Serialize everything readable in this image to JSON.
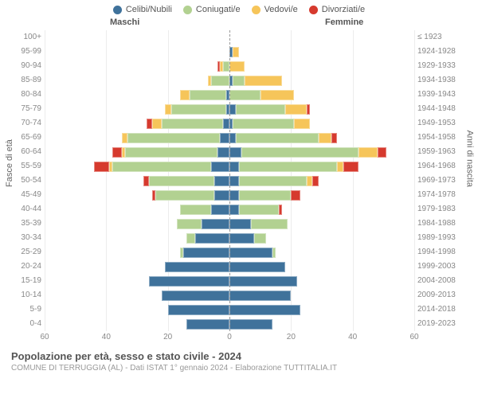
{
  "legend": [
    {
      "label": "Celibi/Nubili",
      "color": "#3f729b"
    },
    {
      "label": "Coniugati/e",
      "color": "#b2d191"
    },
    {
      "label": "Vedovi/e",
      "color": "#f6c55a"
    },
    {
      "label": "Divorziati/e",
      "color": "#d63a2e"
    }
  ],
  "gender": {
    "male": "Maschi",
    "female": "Femmine"
  },
  "y_left_title": "Fasce di età",
  "y_right_title": "Anni di nascita",
  "x": {
    "min": -60,
    "max": 60,
    "ticks": [
      60,
      40,
      20,
      0,
      20,
      40,
      60
    ]
  },
  "age_labels": [
    "100+",
    "95-99",
    "90-94",
    "85-89",
    "80-84",
    "75-79",
    "70-74",
    "65-69",
    "60-64",
    "55-59",
    "50-54",
    "45-49",
    "40-44",
    "35-39",
    "30-34",
    "25-29",
    "20-24",
    "15-19",
    "10-14",
    "5-9",
    "0-4"
  ],
  "birth_labels": [
    "≤ 1923",
    "1924-1928",
    "1929-1933",
    "1934-1938",
    "1939-1943",
    "1944-1948",
    "1949-1953",
    "1954-1958",
    "1959-1963",
    "1964-1968",
    "1969-1973",
    "1974-1978",
    "1979-1983",
    "1984-1988",
    "1989-1993",
    "1994-1998",
    "1999-2003",
    "2004-2008",
    "2009-2013",
    "2014-2018",
    "2019-2023"
  ],
  "rows": [
    {
      "m": {
        "c": 0,
        "m": 0,
        "w": 0,
        "d": 0
      },
      "f": {
        "c": 0,
        "m": 0,
        "w": 0,
        "d": 0
      }
    },
    {
      "m": {
        "c": 0,
        "m": 0,
        "w": 0,
        "d": 0
      },
      "f": {
        "c": 1,
        "m": 0,
        "w": 2,
        "d": 0
      }
    },
    {
      "m": {
        "c": 0,
        "m": 2,
        "w": 1,
        "d": 1
      },
      "f": {
        "c": 0,
        "m": 0,
        "w": 5,
        "d": 0
      }
    },
    {
      "m": {
        "c": 0,
        "m": 6,
        "w": 1,
        "d": 0
      },
      "f": {
        "c": 1,
        "m": 4,
        "w": 12,
        "d": 0
      }
    },
    {
      "m": {
        "c": 1,
        "m": 12,
        "w": 3,
        "d": 0
      },
      "f": {
        "c": 0,
        "m": 10,
        "w": 11,
        "d": 0
      }
    },
    {
      "m": {
        "c": 1,
        "m": 18,
        "w": 2,
        "d": 0
      },
      "f": {
        "c": 2,
        "m": 16,
        "w": 7,
        "d": 1
      }
    },
    {
      "m": {
        "c": 2,
        "m": 20,
        "w": 3,
        "d": 2
      },
      "f": {
        "c": 1,
        "m": 20,
        "w": 5,
        "d": 0
      }
    },
    {
      "m": {
        "c": 3,
        "m": 30,
        "w": 2,
        "d": 0
      },
      "f": {
        "c": 2,
        "m": 27,
        "w": 4,
        "d": 2
      }
    },
    {
      "m": {
        "c": 4,
        "m": 30,
        "w": 1,
        "d": 3
      },
      "f": {
        "c": 4,
        "m": 38,
        "w": 6,
        "d": 3
      }
    },
    {
      "m": {
        "c": 6,
        "m": 32,
        "w": 1,
        "d": 5
      },
      "f": {
        "c": 3,
        "m": 32,
        "w": 2,
        "d": 5
      }
    },
    {
      "m": {
        "c": 5,
        "m": 21,
        "w": 0,
        "d": 2
      },
      "f": {
        "c": 3,
        "m": 22,
        "w": 2,
        "d": 2
      }
    },
    {
      "m": {
        "c": 5,
        "m": 19,
        "w": 0,
        "d": 1
      },
      "f": {
        "c": 3,
        "m": 17,
        "w": 0,
        "d": 3
      }
    },
    {
      "m": {
        "c": 6,
        "m": 10,
        "w": 0,
        "d": 0
      },
      "f": {
        "c": 3,
        "m": 13,
        "w": 0,
        "d": 1
      }
    },
    {
      "m": {
        "c": 9,
        "m": 8,
        "w": 0,
        "d": 0
      },
      "f": {
        "c": 7,
        "m": 12,
        "w": 0,
        "d": 0
      }
    },
    {
      "m": {
        "c": 11,
        "m": 3,
        "w": 0,
        "d": 0
      },
      "f": {
        "c": 8,
        "m": 4,
        "w": 0,
        "d": 0
      }
    },
    {
      "m": {
        "c": 15,
        "m": 1,
        "w": 0,
        "d": 0
      },
      "f": {
        "c": 14,
        "m": 1,
        "w": 0,
        "d": 0
      }
    },
    {
      "m": {
        "c": 21,
        "m": 0,
        "w": 0,
        "d": 0
      },
      "f": {
        "c": 18,
        "m": 0,
        "w": 0,
        "d": 0
      }
    },
    {
      "m": {
        "c": 26,
        "m": 0,
        "w": 0,
        "d": 0
      },
      "f": {
        "c": 22,
        "m": 0,
        "w": 0,
        "d": 0
      }
    },
    {
      "m": {
        "c": 22,
        "m": 0,
        "w": 0,
        "d": 0
      },
      "f": {
        "c": 20,
        "m": 0,
        "w": 0,
        "d": 0
      }
    },
    {
      "m": {
        "c": 20,
        "m": 0,
        "w": 0,
        "d": 0
      },
      "f": {
        "c": 23,
        "m": 0,
        "w": 0,
        "d": 0
      }
    },
    {
      "m": {
        "c": 14,
        "m": 0,
        "w": 0,
        "d": 0
      },
      "f": {
        "c": 14,
        "m": 0,
        "w": 0,
        "d": 0
      }
    }
  ],
  "colors": {
    "c": "#3f729b",
    "m": "#b2d191",
    "w": "#f6c55a",
    "d": "#d63a2e"
  },
  "title": "Popolazione per età, sesso e stato civile - 2024",
  "subtitle": "COMUNE DI TERRUGGIA (AL) - Dati ISTAT 1° gennaio 2024 - Elaborazione TUTTITALIA.IT"
}
